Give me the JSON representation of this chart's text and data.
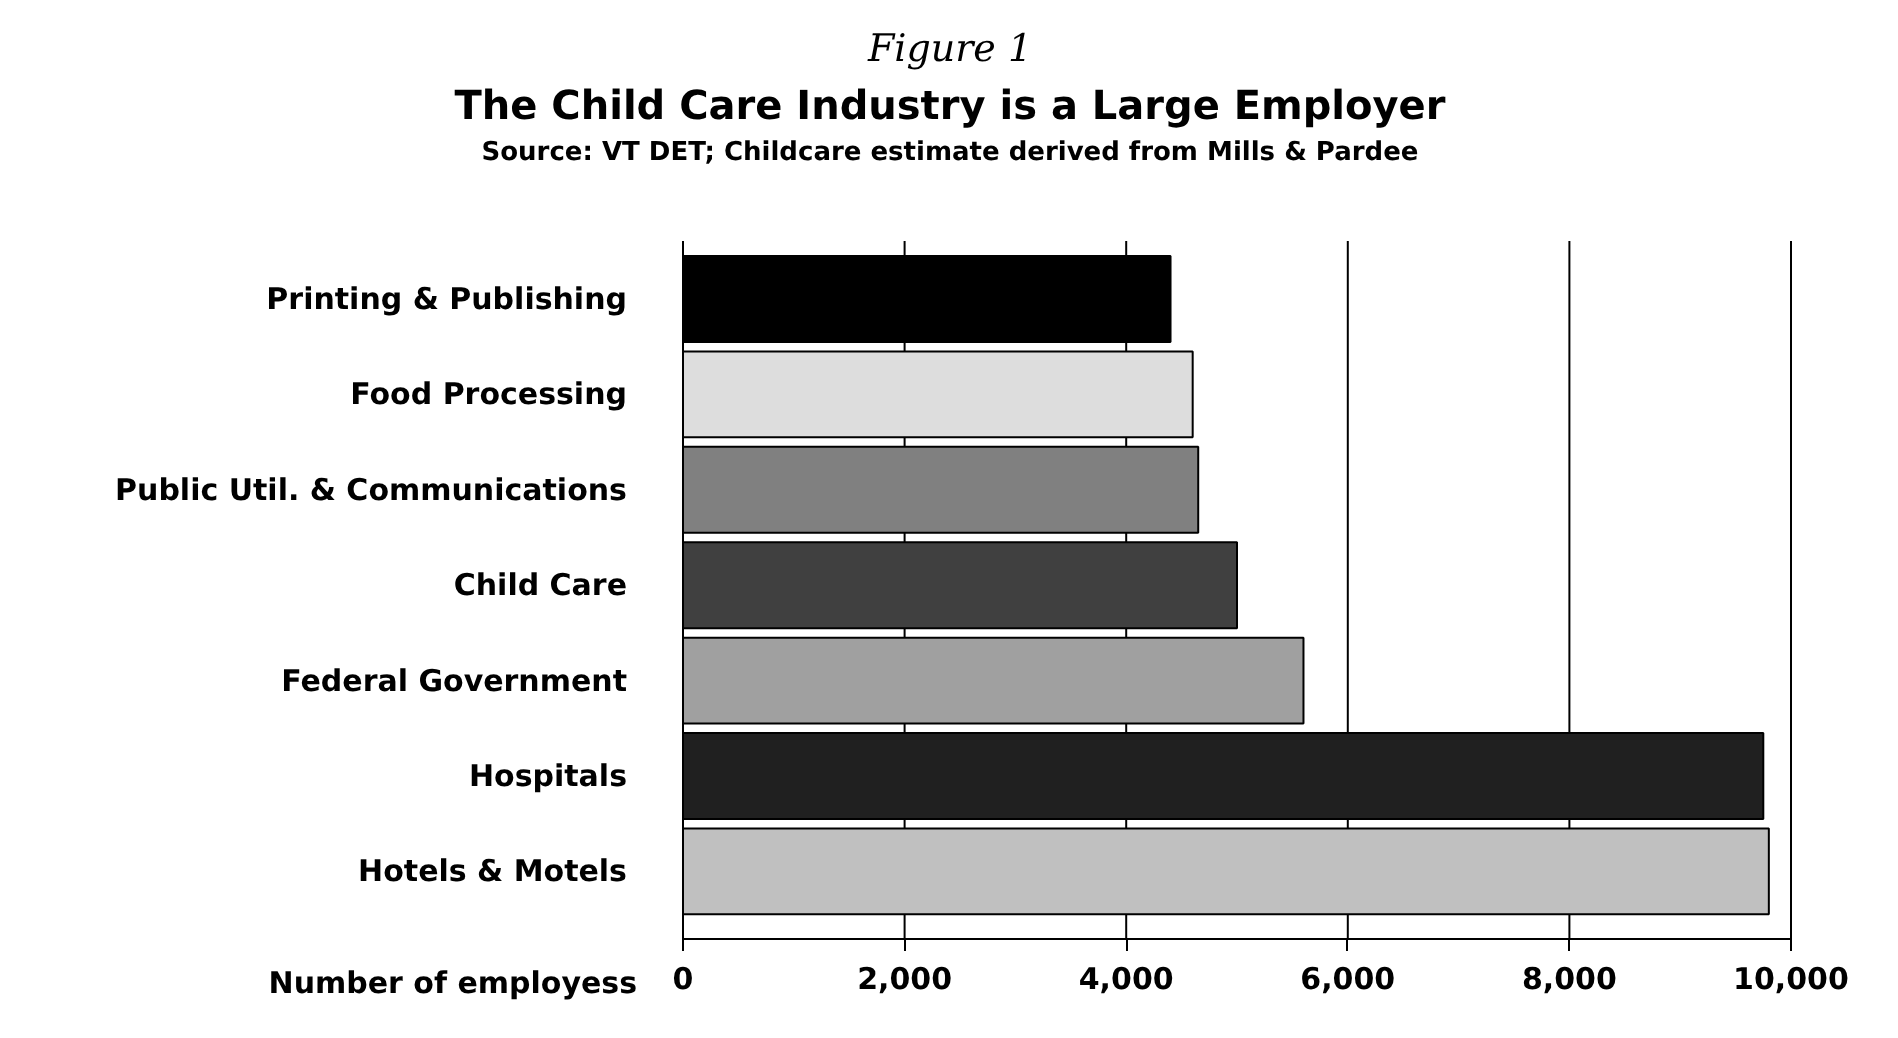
{
  "chart_data": {
    "type": "bar",
    "orientation": "horizontal",
    "title": "The Child Care Industry is a Large Employer",
    "subtitle": "Source: VT DET; Childcare estimate derived from Mills & Pardee",
    "annotations": [
      "Figure 1"
    ],
    "xlabel": "Number of employess",
    "categories": [
      "Printing & Publishing",
      "Food Processing",
      "Public Util. & Communications",
      "Child Care",
      "Federal Government",
      "Hospitals",
      "Hotels & Motels"
    ],
    "values": [
      4400,
      4600,
      4650,
      5000,
      5600,
      9750,
      9800
    ],
    "colors": [
      "#000000",
      "#dddddd",
      "#808080",
      "#404040",
      "#a0a0a0",
      "#202020",
      "#c0c0c0"
    ],
    "xlim": [
      0,
      10000
    ],
    "xticks": [
      {
        "value": 0,
        "label": "0"
      },
      {
        "value": 2000,
        "label": "2,000"
      },
      {
        "value": 4000,
        "label": "4,000"
      },
      {
        "value": 6000,
        "label": "6,000"
      },
      {
        "value": 8000,
        "label": "8,000"
      },
      {
        "value": 10000,
        "label": "10,000"
      }
    ],
    "grid": "x"
  }
}
